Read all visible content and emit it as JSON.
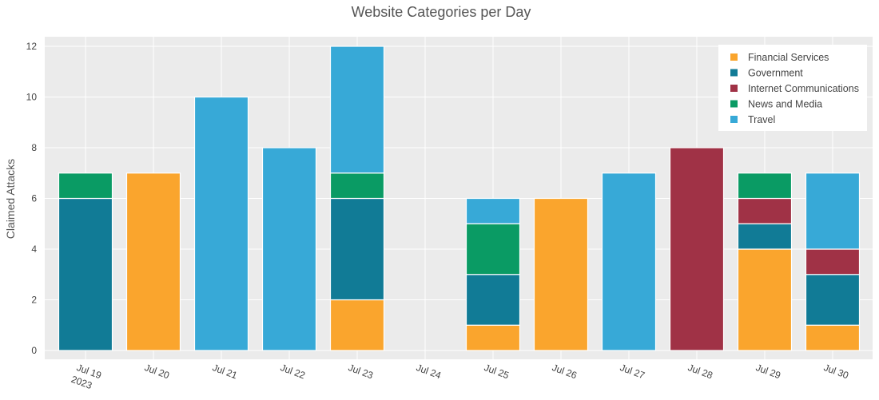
{
  "chart_data": {
    "type": "bar",
    "stacked": true,
    "title": "Website Categories per Day",
    "xlabel": "",
    "ylabel": "Claimed Attacks",
    "ylim": [
      0,
      12
    ],
    "yticks": [
      0,
      2,
      4,
      6,
      8,
      10,
      12
    ],
    "grid": true,
    "legend_position": "top-right",
    "categories": [
      "Jul 19",
      "Jul 20",
      "Jul 21",
      "Jul 22",
      "Jul 23",
      "Jul 24",
      "Jul 25",
      "Jul 26",
      "Jul 27",
      "Jul 28",
      "Jul 29",
      "Jul 30"
    ],
    "first_tick_year": "2023",
    "series": [
      {
        "name": "Financial Services",
        "color": "#faa52d",
        "values": [
          0,
          7,
          0,
          0,
          2,
          0,
          1,
          6,
          0,
          0,
          4,
          1
        ]
      },
      {
        "name": "Government",
        "color": "#117b96",
        "values": [
          6,
          0,
          0,
          0,
          4,
          0,
          2,
          0,
          0,
          0,
          1,
          2
        ]
      },
      {
        "name": "Internet Communications",
        "color": "#a03246",
        "values": [
          0,
          0,
          0,
          0,
          0,
          0,
          0,
          0,
          0,
          8,
          1,
          1
        ]
      },
      {
        "name": "News and Media",
        "color": "#0a9b64",
        "values": [
          1,
          0,
          0,
          0,
          1,
          0,
          2,
          0,
          0,
          0,
          1,
          0
        ]
      },
      {
        "name": "Travel",
        "color": "#37a9d7",
        "values": [
          0,
          0,
          10,
          8,
          5,
          0,
          1,
          0,
          7,
          0,
          0,
          3
        ]
      }
    ]
  }
}
